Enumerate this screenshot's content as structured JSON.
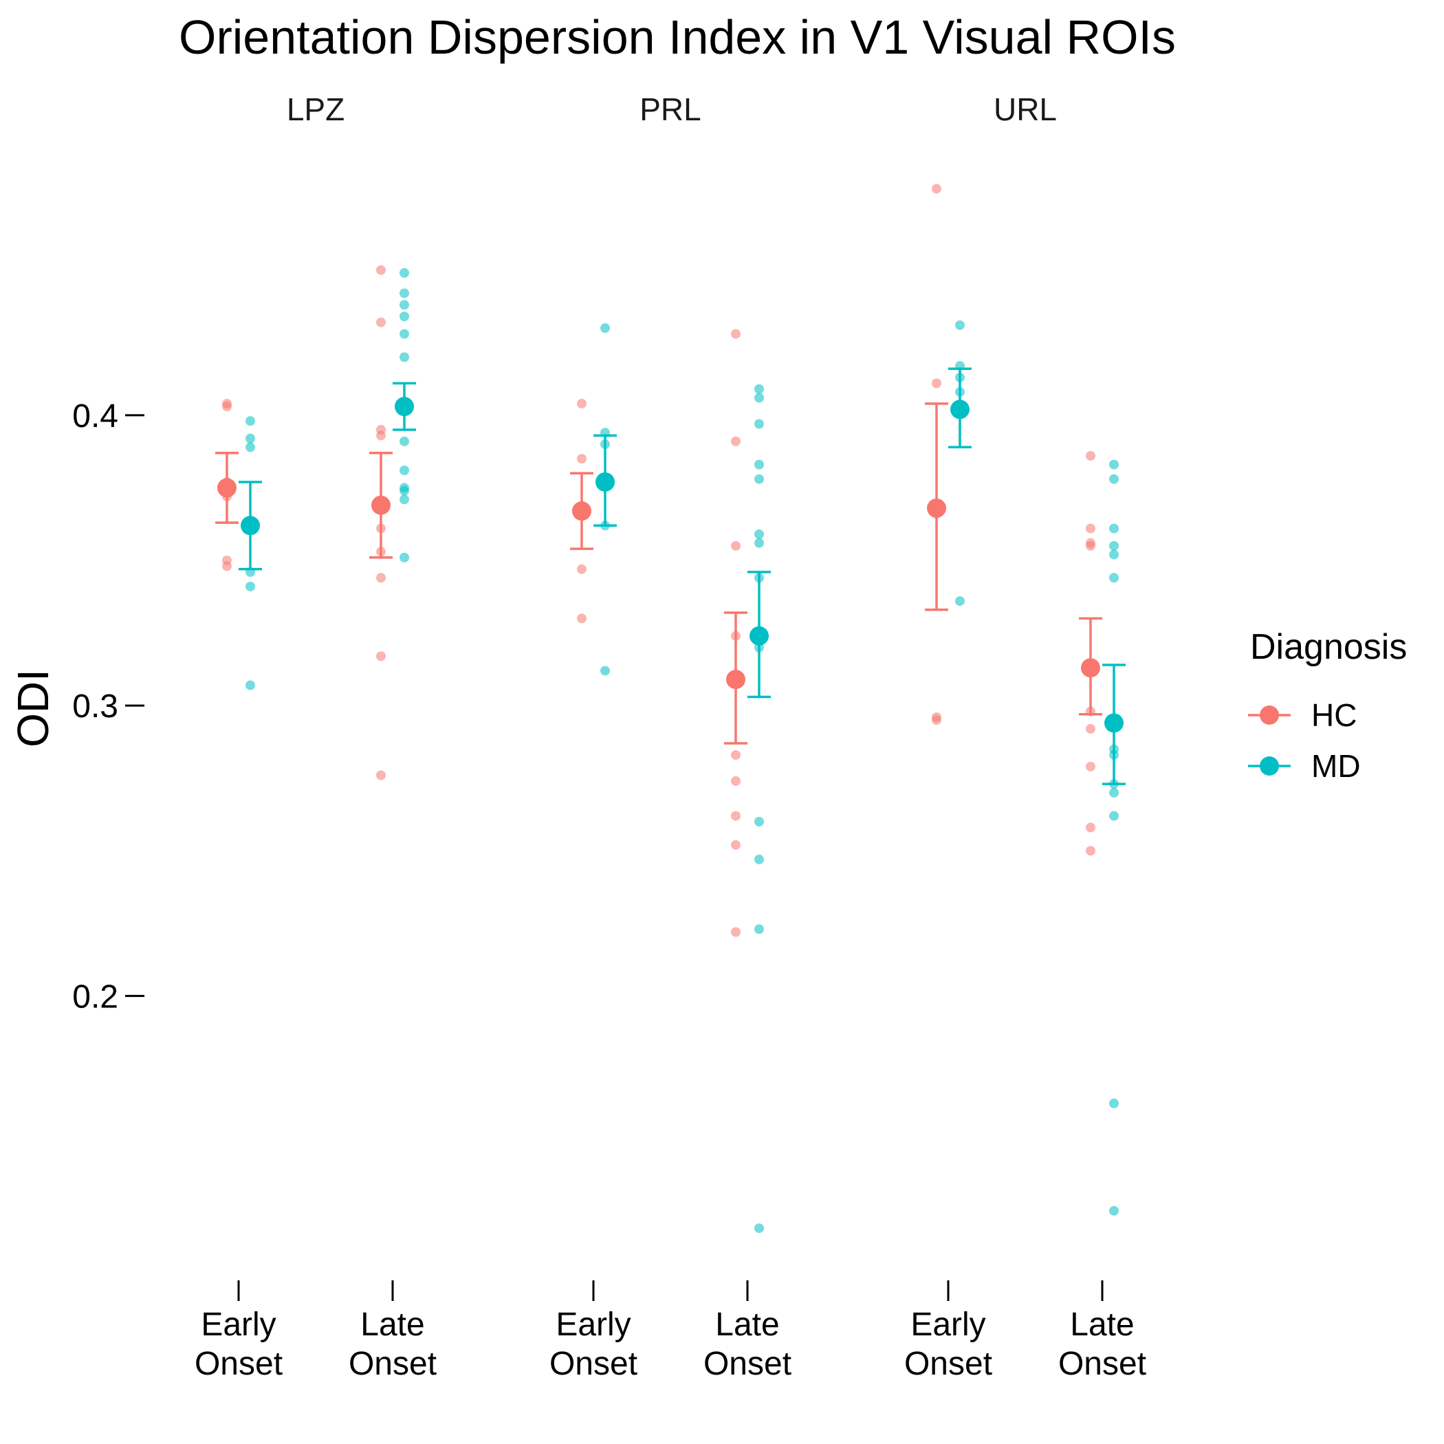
{
  "chart_data": {
    "type": "scatter",
    "title": "Orientation Dispersion Index in V1 Visual ROIs",
    "ylabel": "ODI",
    "xlabel": "",
    "ylim": [
      0.112,
      0.498
    ],
    "yticks": [
      0.2,
      0.3,
      0.4
    ],
    "ytick_labels": [
      "0.2",
      "0.3",
      "0.4"
    ],
    "grid": false,
    "legend": {
      "title": "Diagnosis",
      "position": "right",
      "entries": [
        {
          "name": "HC",
          "color": "#F8766D"
        },
        {
          "name": "MD",
          "color": "#00BFC4"
        }
      ]
    },
    "x_categories": [
      {
        "line1": "Early",
        "line2": "Onset"
      },
      {
        "line1": "Late",
        "line2": "Onset"
      }
    ],
    "panels": [
      {
        "name": "LPZ",
        "groups": [
          {
            "onset": 0,
            "diagnosis": "HC",
            "mean": 0.375,
            "ymin": 0.363,
            "ymax": 0.387,
            "points": [
              0.404,
              0.403,
              0.377,
              0.372,
              0.35,
              0.348
            ]
          },
          {
            "onset": 0,
            "diagnosis": "MD",
            "mean": 0.362,
            "ymin": 0.347,
            "ymax": 0.377,
            "points": [
              0.398,
              0.392,
              0.389,
              0.346,
              0.341,
              0.307
            ]
          },
          {
            "onset": 1,
            "diagnosis": "HC",
            "mean": 0.369,
            "ymin": 0.351,
            "ymax": 0.387,
            "points": [
              0.45,
              0.432,
              0.395,
              0.393,
              0.361,
              0.353,
              0.344,
              0.317,
              0.276
            ]
          },
          {
            "onset": 1,
            "diagnosis": "MD",
            "mean": 0.403,
            "ymin": 0.395,
            "ymax": 0.411,
            "points": [
              0.449,
              0.442,
              0.438,
              0.434,
              0.428,
              0.42,
              0.391,
              0.381,
              0.375,
              0.374,
              0.371,
              0.351
            ]
          }
        ]
      },
      {
        "name": "PRL",
        "groups": [
          {
            "onset": 0,
            "diagnosis": "HC",
            "mean": 0.367,
            "ymin": 0.354,
            "ymax": 0.38,
            "points": [
              0.404,
              0.385,
              0.347,
              0.33
            ]
          },
          {
            "onset": 0,
            "diagnosis": "MD",
            "mean": 0.377,
            "ymin": 0.362,
            "ymax": 0.393,
            "points": [
              0.43,
              0.394,
              0.39,
              0.362,
              0.312
            ]
          },
          {
            "onset": 1,
            "diagnosis": "HC",
            "mean": 0.309,
            "ymin": 0.287,
            "ymax": 0.332,
            "points": [
              0.428,
              0.391,
              0.355,
              0.324,
              0.283,
              0.274,
              0.262,
              0.252,
              0.222
            ]
          },
          {
            "onset": 1,
            "diagnosis": "MD",
            "mean": 0.324,
            "ymin": 0.303,
            "ymax": 0.346,
            "points": [
              0.409,
              0.406,
              0.397,
              0.383,
              0.378,
              0.359,
              0.356,
              0.344,
              0.32,
              0.26,
              0.247,
              0.223,
              0.12
            ]
          }
        ]
      },
      {
        "name": "URL",
        "groups": [
          {
            "onset": 0,
            "diagnosis": "HC",
            "mean": 0.368,
            "ymin": 0.333,
            "ymax": 0.404,
            "points": [
              0.478,
              0.411,
              0.366,
              0.296,
              0.295
            ]
          },
          {
            "onset": 0,
            "diagnosis": "MD",
            "mean": 0.402,
            "ymin": 0.389,
            "ymax": 0.416,
            "points": [
              0.431,
              0.417,
              0.413,
              0.408,
              0.336
            ]
          },
          {
            "onset": 1,
            "diagnosis": "HC",
            "mean": 0.313,
            "ymin": 0.297,
            "ymax": 0.33,
            "points": [
              0.386,
              0.361,
              0.356,
              0.355,
              0.298,
              0.292,
              0.279,
              0.258,
              0.25
            ]
          },
          {
            "onset": 1,
            "diagnosis": "MD",
            "mean": 0.294,
            "ymin": 0.273,
            "ymax": 0.314,
            "points": [
              0.383,
              0.378,
              0.361,
              0.355,
              0.352,
              0.344,
              0.285,
              0.283,
              0.273,
              0.27,
              0.262,
              0.163,
              0.126
            ]
          }
        ]
      }
    ]
  }
}
